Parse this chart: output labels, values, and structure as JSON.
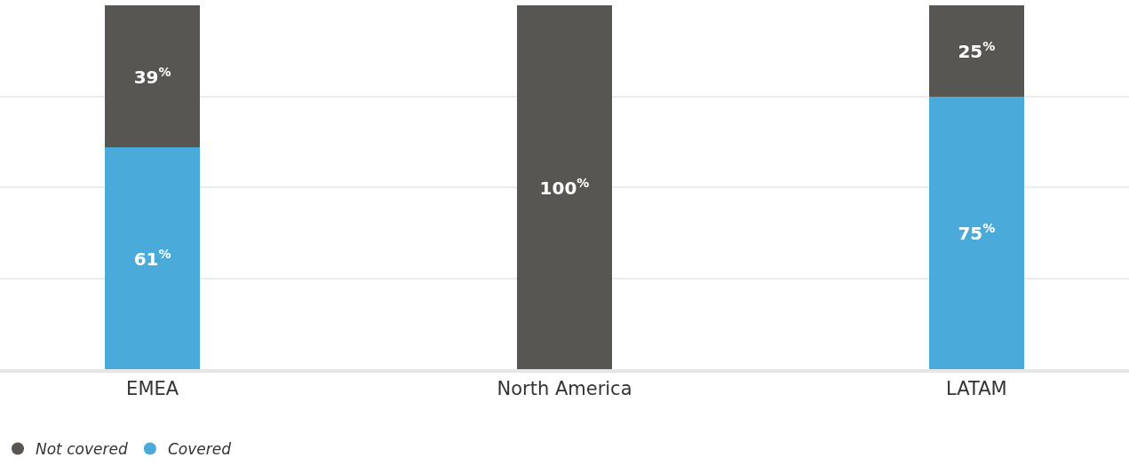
{
  "chart_data": {
    "type": "bar",
    "stacked": true,
    "categories": [
      "EMEA",
      "North America",
      "LATAM"
    ],
    "series": [
      {
        "name": "Covered",
        "color": "#4aabda",
        "values": [
          61,
          0,
          75
        ],
        "value_labels": [
          "61$^{%}$",
          null,
          "75$^{%}$"
        ]
      },
      {
        "name": "Not covered",
        "color": "#575652",
        "values": [
          39,
          100,
          25
        ],
        "value_labels": [
          "39$^{%}$",
          "100$^{%}$",
          "25$^{%}$"
        ]
      }
    ],
    "ylim": [
      0,
      100
    ],
    "yticks": [
      {
        "value": 25,
        "label": null
      },
      {
        "value": 50,
        "label": null
      },
      {
        "value": 75,
        "label": null
      }
    ],
    "tick_labels": "x",
    "grid": "y",
    "legend": "bottom left",
    "marker": "circle"
  }
}
